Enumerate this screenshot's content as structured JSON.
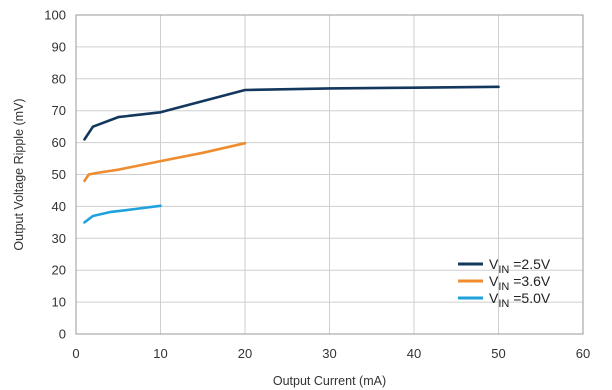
{
  "chart_data": {
    "type": "line",
    "title": "",
    "xlabel": "Output Current (mA)",
    "ylabel": "Output Voltage Ripple (mV)",
    "xlim": [
      0,
      60
    ],
    "ylim": [
      0,
      100
    ],
    "x_ticks": [
      0,
      10,
      20,
      30,
      40,
      50,
      60
    ],
    "y_ticks": [
      0,
      10,
      20,
      30,
      40,
      50,
      60,
      70,
      80,
      90,
      100
    ],
    "x_tick_labels": [
      "0",
      "10",
      "20",
      "30",
      "40",
      "50",
      "60"
    ],
    "y_tick_labels": [
      "0",
      "10",
      "20",
      "30",
      "40",
      "50",
      "60",
      "70",
      "80",
      "90",
      "100"
    ],
    "grid": true,
    "legend_position": "bottom-right",
    "series": [
      {
        "name": "VIN =2.5V",
        "label_main": "V",
        "label_sub": "IN",
        "label_rest": " =2.5V",
        "color": "#14375e",
        "points": [
          [
            1,
            61
          ],
          [
            2,
            65
          ],
          [
            5,
            68
          ],
          [
            10,
            69.5
          ],
          [
            20,
            76.5
          ],
          [
            30,
            77
          ],
          [
            40,
            77.2
          ],
          [
            50,
            77.5
          ]
        ]
      },
      {
        "name": "VIN =3.6V",
        "label_main": "V",
        "label_sub": "IN",
        "label_rest": " =3.6V",
        "color": "#ef8c2f",
        "points": [
          [
            1,
            48
          ],
          [
            1.5,
            50
          ],
          [
            2.5,
            50.5
          ],
          [
            5,
            51.5
          ],
          [
            10,
            54.2
          ],
          [
            15,
            56.8
          ],
          [
            20,
            59.8
          ]
        ]
      },
      {
        "name": "VIN =5.0V",
        "label_main": "V",
        "label_sub": "IN",
        "label_rest": " =5.0V",
        "color": "#1fa1dc",
        "points": [
          [
            1,
            35
          ],
          [
            2,
            37
          ],
          [
            4,
            38.2
          ],
          [
            7,
            39.2
          ],
          [
            10,
            40.2
          ]
        ]
      }
    ]
  }
}
